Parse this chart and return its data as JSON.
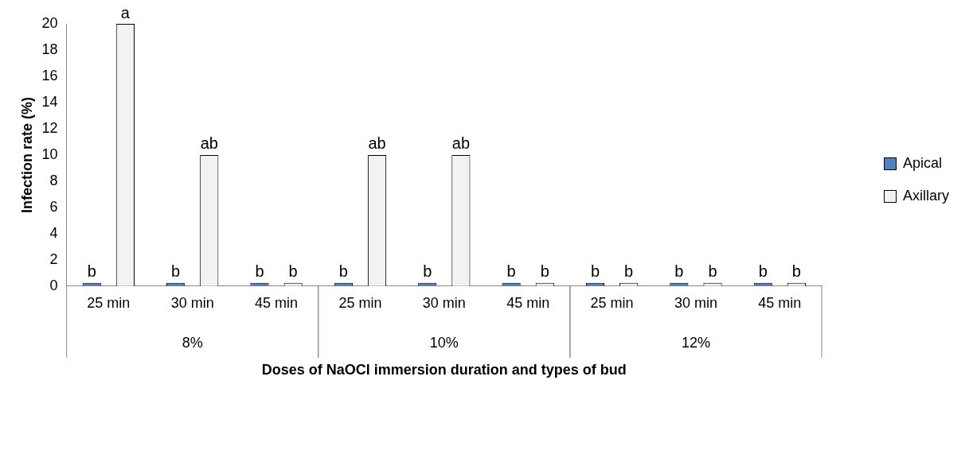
{
  "chart_data": {
    "type": "bar",
    "ylabel": "Infection rate (%)",
    "xlabel": "Doses of NaOCl immersion duration and types of bud",
    "categories": [
      "25 min",
      "30 min",
      "45 min",
      "25 min",
      "30 min",
      "45 min",
      "25 min",
      "30 min",
      "45 min"
    ],
    "series": [
      {
        "name": "Apical",
        "color": "#4f81bd",
        "values": [
          0,
          0,
          0,
          0,
          0,
          0,
          0,
          0,
          0
        ],
        "value_labels": [
          "b",
          "b",
          "b",
          "b",
          "b",
          "b",
          "b",
          "b",
          "b"
        ]
      },
      {
        "name": "Axillary",
        "color": "#f2f2f2",
        "values": [
          20,
          10,
          0,
          10,
          10,
          0,
          0,
          0,
          0
        ],
        "value_labels": [
          "a",
          "ab",
          "b",
          "ab",
          "ab",
          "b",
          "b",
          "b",
          "b"
        ]
      }
    ],
    "annotations": [
      "8%",
      "10%",
      "12%"
    ],
    "ylim": [
      0,
      20
    ],
    "yticks": [
      0,
      2,
      4,
      6,
      8,
      10,
      12,
      14,
      16,
      18,
      20
    ],
    "grid": false,
    "legend": "right"
  }
}
